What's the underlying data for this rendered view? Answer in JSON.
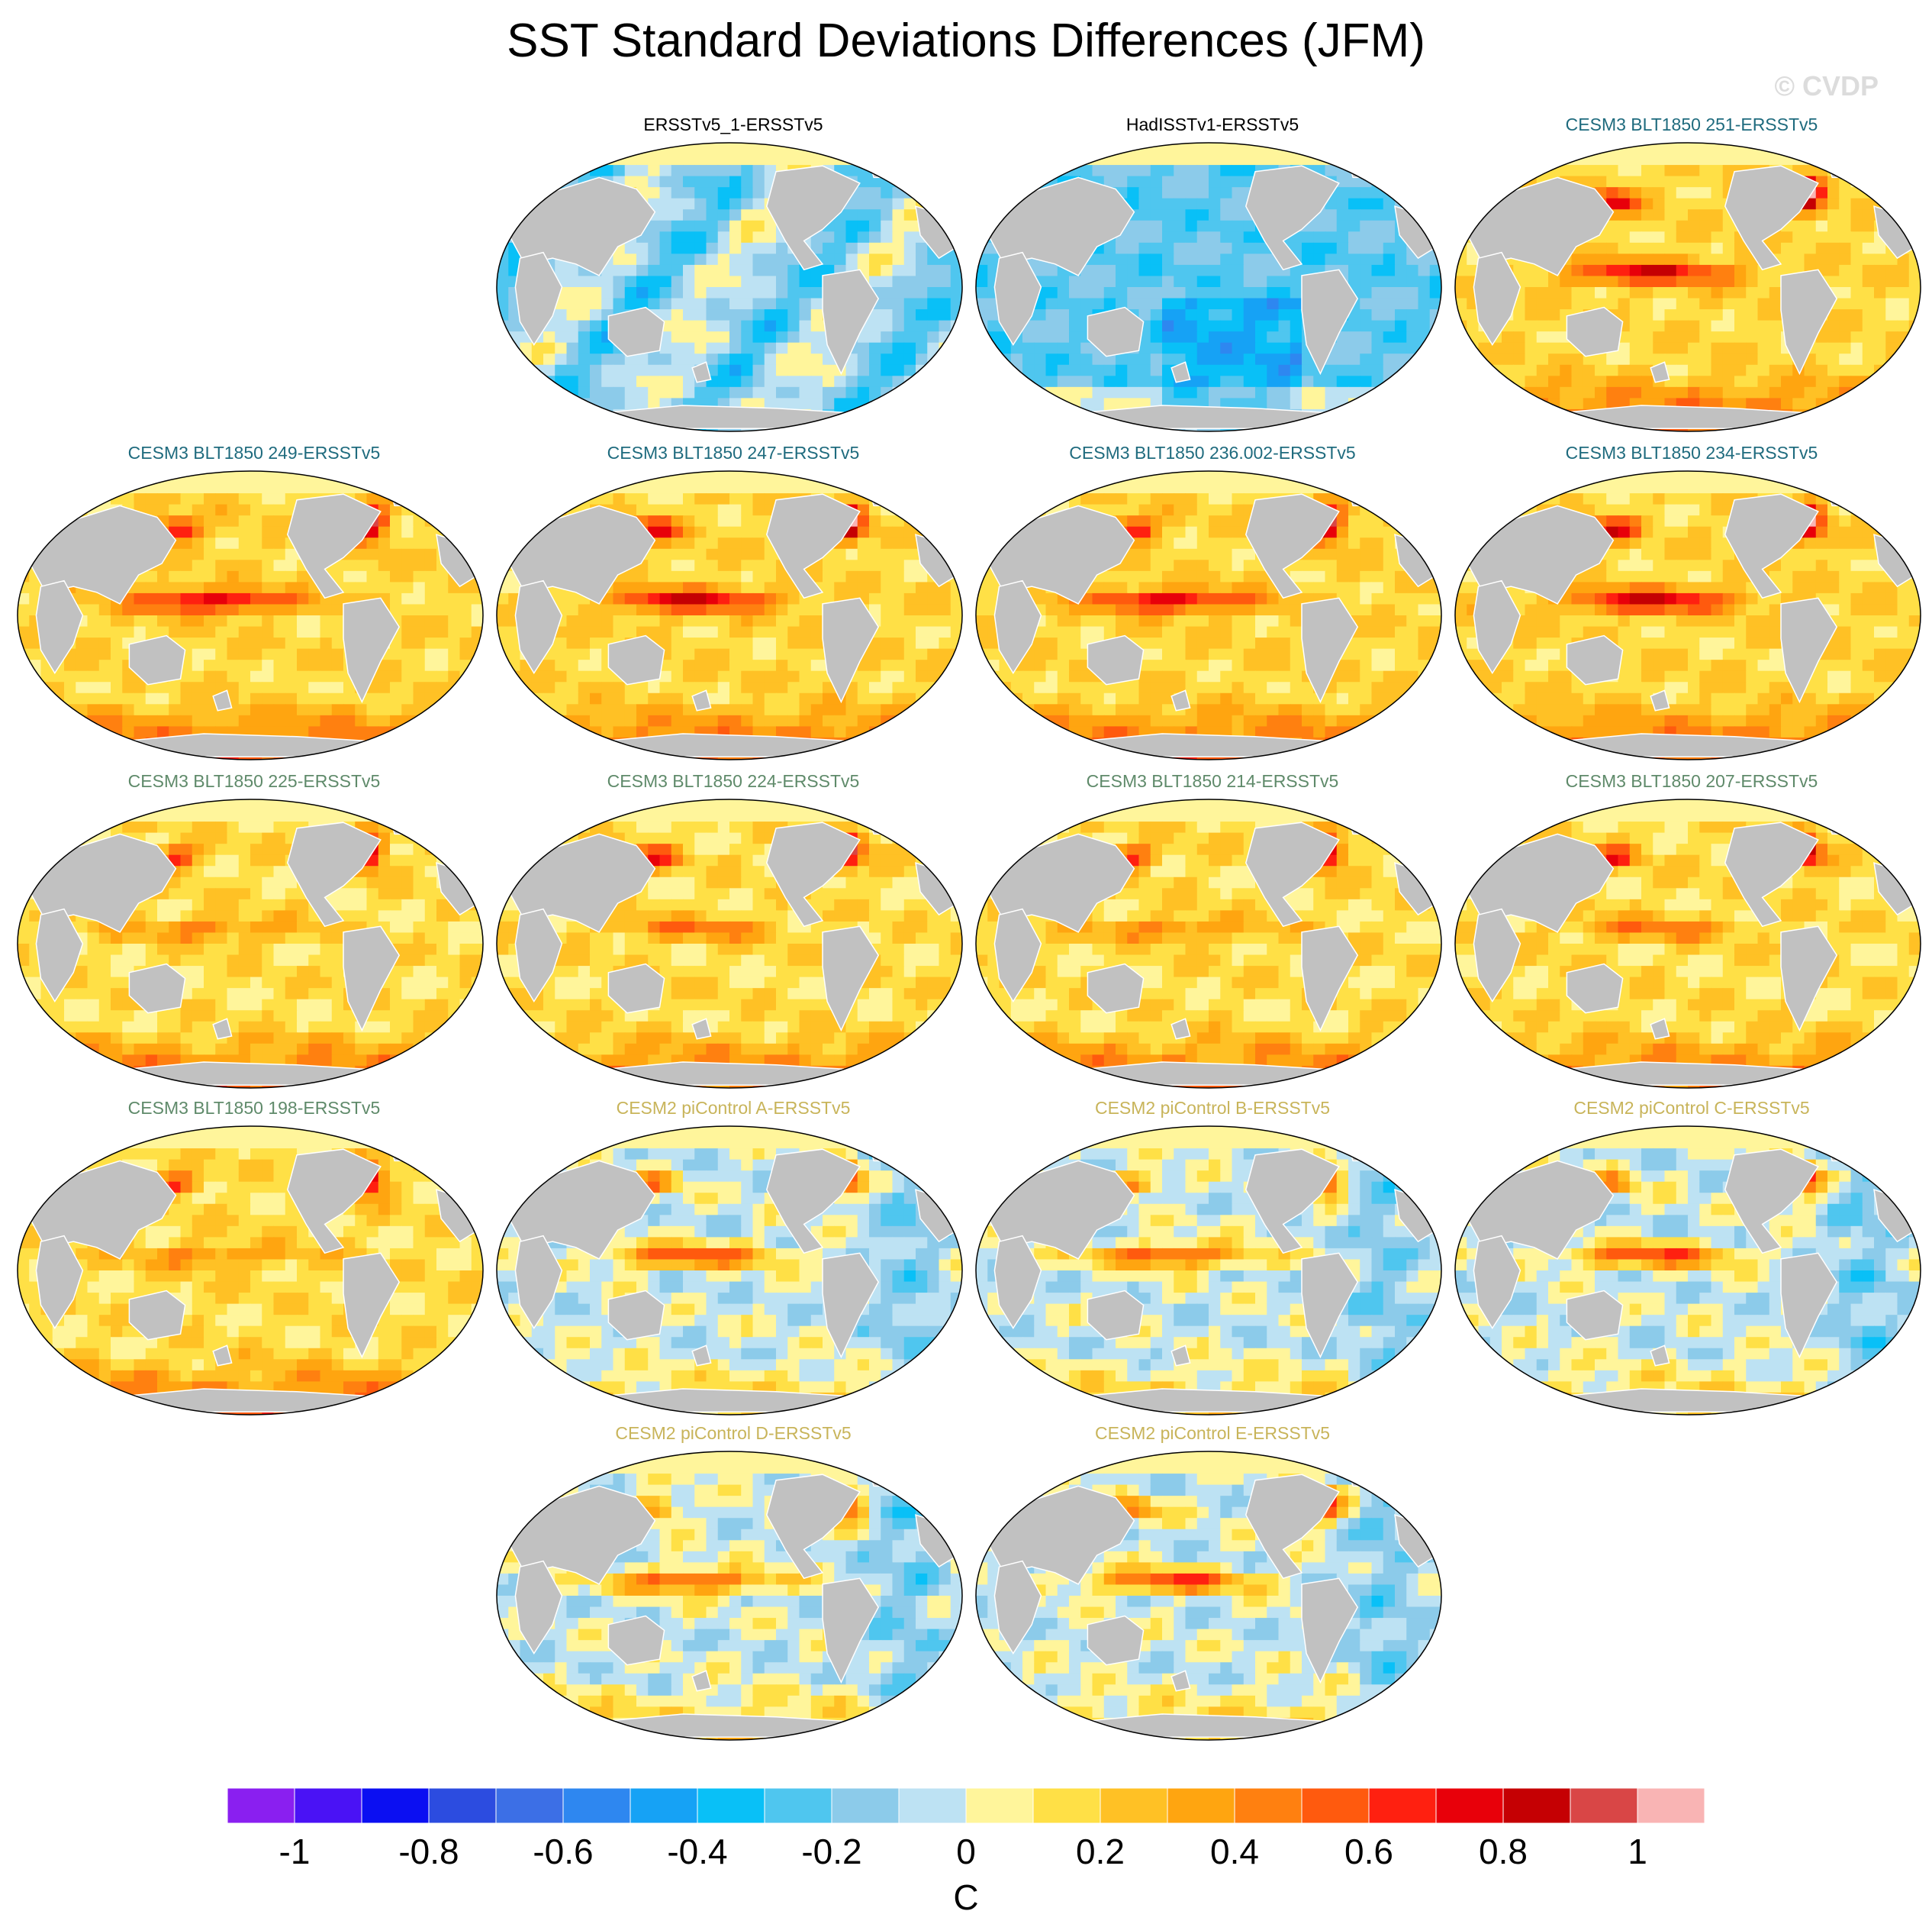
{
  "title": "SST Standard Deviations Differences (JFM)",
  "watermark": "© CVDP",
  "chart_data": {
    "type": "heatmap",
    "title": "SST Standard Deviations Differences (JFM)",
    "projection": "Robinson (global map panels)",
    "variable": "SST standard deviation difference",
    "units": "C",
    "colorbar": {
      "ticks": [
        "-1",
        "-0.8",
        "-0.6",
        "-0.4",
        "-0.2",
        "0",
        "0.2",
        "0.4",
        "0.6",
        "0.8",
        "1"
      ],
      "tick_values": [
        -1,
        -0.8,
        -0.6,
        -0.4,
        -0.2,
        0,
        0.2,
        0.4,
        0.6,
        0.8,
        1
      ],
      "range": [
        -1.1,
        1.1
      ],
      "step": 0.1,
      "colors": [
        "#8a1ff0",
        "#4a12f5",
        "#0b0ff2",
        "#2c4ce0",
        "#3c6fe6",
        "#2e87f0",
        "#16a2f5",
        "#09c0f7",
        "#4fc6ef",
        "#8ccbea",
        "#bde2f3",
        "#fff59b",
        "#ffe046",
        "#ffc125",
        "#ffa510",
        "#ff8010",
        "#ff5a0e",
        "#ff2010",
        "#e8000a",
        "#c50003",
        "#d94646",
        "#f9b4b4"
      ]
    },
    "panels": [
      {
        "title": "ERSSTv5_1-ERSSTv5",
        "group": "obs",
        "pattern": "obs1"
      },
      {
        "title": "HadISSTv1-ERSSTv5",
        "group": "obs",
        "pattern": "obs2"
      },
      {
        "title": "CESM3 BLT1850 251-ERSSTv5",
        "group": "cesm3-a",
        "pattern": "warm"
      },
      {
        "title": "CESM3 BLT1850 249-ERSSTv5",
        "group": "cesm3-a",
        "pattern": "warm"
      },
      {
        "title": "CESM3 BLT1850 247-ERSSTv5",
        "group": "cesm3-a",
        "pattern": "warm"
      },
      {
        "title": "CESM3 BLT1850 236.002-ERSSTv5",
        "group": "cesm3-a",
        "pattern": "warm"
      },
      {
        "title": "CESM3 BLT1850 234-ERSSTv5",
        "group": "cesm3-a",
        "pattern": "warm"
      },
      {
        "title": "CESM3 BLT1850 225-ERSSTv5",
        "group": "cesm3-b",
        "pattern": "warm2"
      },
      {
        "title": "CESM3 BLT1850 224-ERSSTv5",
        "group": "cesm3-b",
        "pattern": "warm2"
      },
      {
        "title": "CESM3 BLT1850 214-ERSSTv5",
        "group": "cesm3-b",
        "pattern": "warm2"
      },
      {
        "title": "CESM3 BLT1850 207-ERSSTv5",
        "group": "cesm3-b",
        "pattern": "warm2"
      },
      {
        "title": "CESM3 BLT1850 198-ERSSTv5",
        "group": "cesm3-b",
        "pattern": "warm2"
      },
      {
        "title": "CESM2 piControl A-ERSSTv5",
        "group": "cesm2",
        "pattern": "mixed"
      },
      {
        "title": "CESM2 piControl B-ERSSTv5",
        "group": "cesm2",
        "pattern": "mixed"
      },
      {
        "title": "CESM2 piControl C-ERSSTv5",
        "group": "cesm2",
        "pattern": "mixed"
      },
      {
        "title": "CESM2 piControl D-ERSSTv5",
        "group": "cesm2",
        "pattern": "mixed"
      },
      {
        "title": "CESM2 piControl E-ERSSTv5",
        "group": "cesm2",
        "pattern": "mixed"
      }
    ]
  },
  "title_colors": {
    "obs": "#000000",
    "cesm3-a": "#1f6b7e",
    "cesm3-b": "#5f8a6a",
    "cesm2": "#c8b45a"
  }
}
